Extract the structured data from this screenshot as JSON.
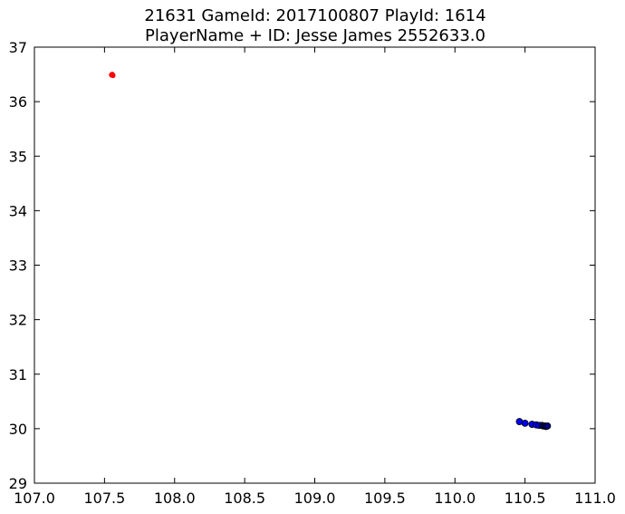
{
  "title_lines": [
    "21631 GameId: 2017100807 PlayId: 1614",
    "PlayerName + ID: Jesse James 2552633.0"
  ],
  "chart_data": {
    "type": "scatter",
    "title": "21631 GameId: 2017100807 PlayId: 1614\nPlayerName + ID: Jesse James 2552633.0",
    "xlabel": "",
    "ylabel": "",
    "xlim": [
      107.0,
      111.0
    ],
    "ylim": [
      29,
      37
    ],
    "x_ticks": [
      "107.0",
      "107.5",
      "108.0",
      "108.5",
      "109.0",
      "109.5",
      "110.0",
      "110.5",
      "111.0"
    ],
    "y_ticks": [
      "29",
      "30",
      "31",
      "32",
      "33",
      "34",
      "35",
      "36",
      "37"
    ],
    "grid": false,
    "legend": "none",
    "series": [
      {
        "color": "#ff0000",
        "points": [
          {
            "x": 107.55,
            "y": 36.49
          },
          {
            "x": 107.555,
            "y": 36.5
          },
          {
            "x": 107.56,
            "y": 36.48
          }
        ]
      },
      {
        "color": "#0000ff",
        "points": [
          {
            "x": 110.46,
            "y": 30.13
          },
          {
            "x": 110.5,
            "y": 30.1
          },
          {
            "x": 110.55,
            "y": 30.08
          },
          {
            "x": 110.58,
            "y": 30.07
          },
          {
            "x": 110.6,
            "y": 30.06
          },
          {
            "x": 110.62,
            "y": 30.06
          }
        ]
      },
      {
        "color": "#000080",
        "points": [
          {
            "x": 110.63,
            "y": 30.05
          },
          {
            "x": 110.64,
            "y": 30.05
          },
          {
            "x": 110.65,
            "y": 30.04
          },
          {
            "x": 110.66,
            "y": 30.05
          }
        ]
      }
    ]
  }
}
